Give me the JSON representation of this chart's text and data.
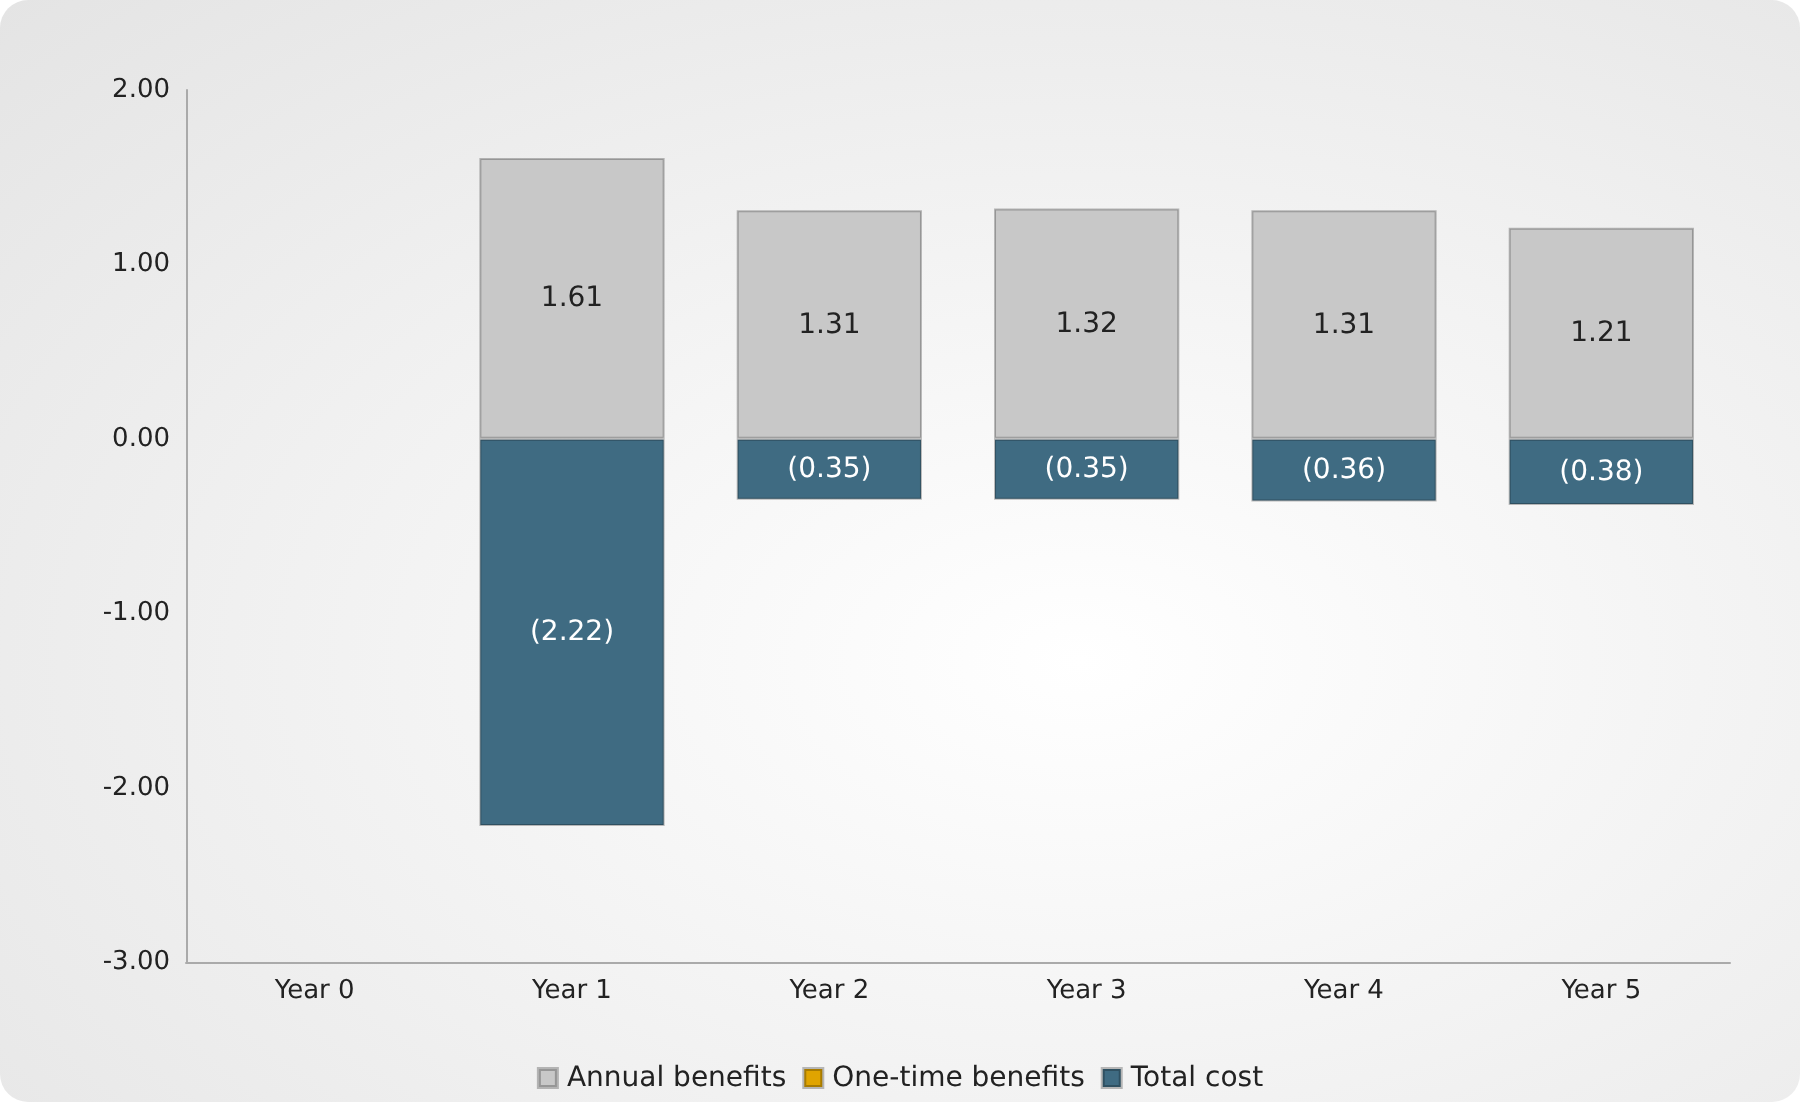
{
  "chart_data": {
    "type": "bar",
    "stacked": true,
    "categories": [
      "Year 0",
      "Year 1",
      "Year 2",
      "Year 3",
      "Year 4",
      "Year 5"
    ],
    "series": [
      {
        "name": "Annual benefits",
        "color": "#c8c8c8",
        "values": [
          null,
          1.61,
          1.31,
          1.32,
          1.31,
          1.21
        ],
        "value_labels": [
          null,
          "1.61",
          "1.31",
          "1.32",
          "1.31",
          "1.21"
        ]
      },
      {
        "name": "One-time benefits",
        "color": "#e0a400",
        "values": [
          null,
          null,
          null,
          null,
          null,
          null
        ]
      },
      {
        "name": "Total cost",
        "color": "#3f6b82",
        "values": [
          null,
          -2.22,
          -0.35,
          -0.35,
          -0.36,
          -0.38
        ],
        "value_labels": [
          null,
          "(2.22)",
          "(0.35)",
          "(0.35)",
          "(0.36)",
          "(0.38)"
        ]
      }
    ],
    "ylim": [
      -3,
      2
    ],
    "yticks": [
      {
        "value": -3,
        "label": "-3.00"
      },
      {
        "value": -2,
        "label": "-2.00"
      },
      {
        "value": -1,
        "label": "-1.00"
      },
      {
        "value": 0,
        "label": "0.00"
      },
      {
        "value": 1,
        "label": "1.00"
      },
      {
        "value": 2,
        "label": "2.00"
      }
    ],
    "grid": false,
    "legend": "bottom"
  }
}
